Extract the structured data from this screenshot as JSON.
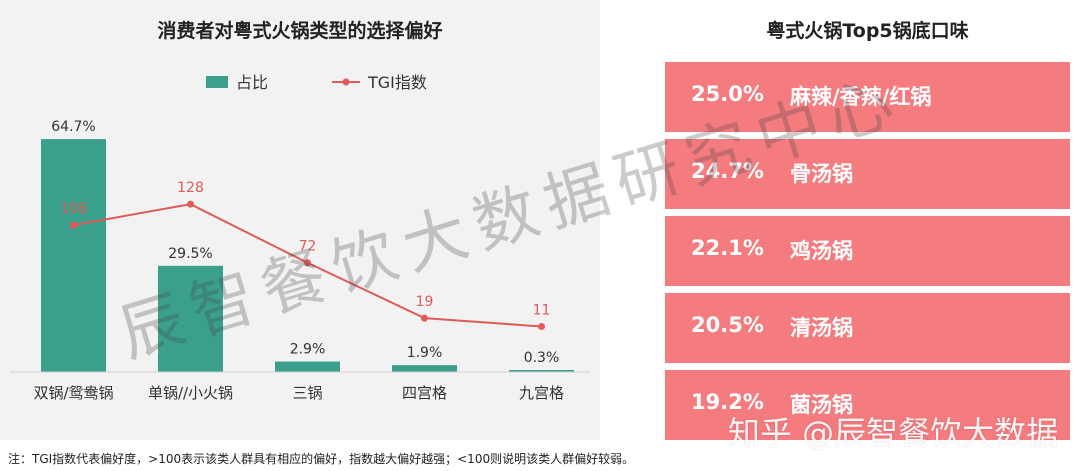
{
  "left_chart": {
    "title": "消费者对粤式火锅类型的选择偏好"
  },
  "chart_data": [
    {
      "type": "bar",
      "title": "消费者对粤式火锅类型的选择偏好",
      "categories": [
        "双锅/鸳鸯锅",
        "单锅//小火锅",
        "三锅",
        "四宫格",
        "九宫格"
      ],
      "series": [
        {
          "name": "占比",
          "type": "bar",
          "values": [
            64.7,
            29.5,
            2.9,
            1.9,
            0.3
          ],
          "value_labels": [
            "64.7%",
            "29.5%",
            "2.9%",
            "1.9%",
            "0.3%"
          ],
          "color": "#3aa08c"
        },
        {
          "name": "TGI指数",
          "type": "line",
          "values": [
            108,
            128,
            72,
            19,
            11
          ],
          "value_labels": [
            "108",
            "128",
            "72",
            "19",
            "11"
          ],
          "color": "#e05a5a"
        }
      ],
      "bar_ylim": [
        0,
        70
      ],
      "line_ylim": [
        0,
        220
      ],
      "legend": "top-center",
      "grid": false
    },
    {
      "type": "table",
      "title": "粤式火锅Top5锅底口味",
      "rows": [
        {
          "percent": "25.0%",
          "name": "麻辣/香辣/红锅"
        },
        {
          "percent": "24.7%",
          "name": "骨汤锅"
        },
        {
          "percent": "22.1%",
          "name": "鸡汤锅"
        },
        {
          "percent": "20.5%",
          "name": "清汤锅"
        },
        {
          "percent": "19.2%",
          "name": "菌汤锅"
        }
      ]
    }
  ],
  "right_panel": {
    "title": "粤式火锅Top5锅底口味",
    "row_color": "#f47b7e"
  },
  "footnote": "注：TGI指数代表偏好度，>100表示该类人群具有相应的偏好，指数越大偏好越强；<100则说明该类人群偏好较弱。",
  "watermark": "辰智餐饮大数据研究中心",
  "watermark_zhihu": "知乎 @辰智餐饮大数据"
}
